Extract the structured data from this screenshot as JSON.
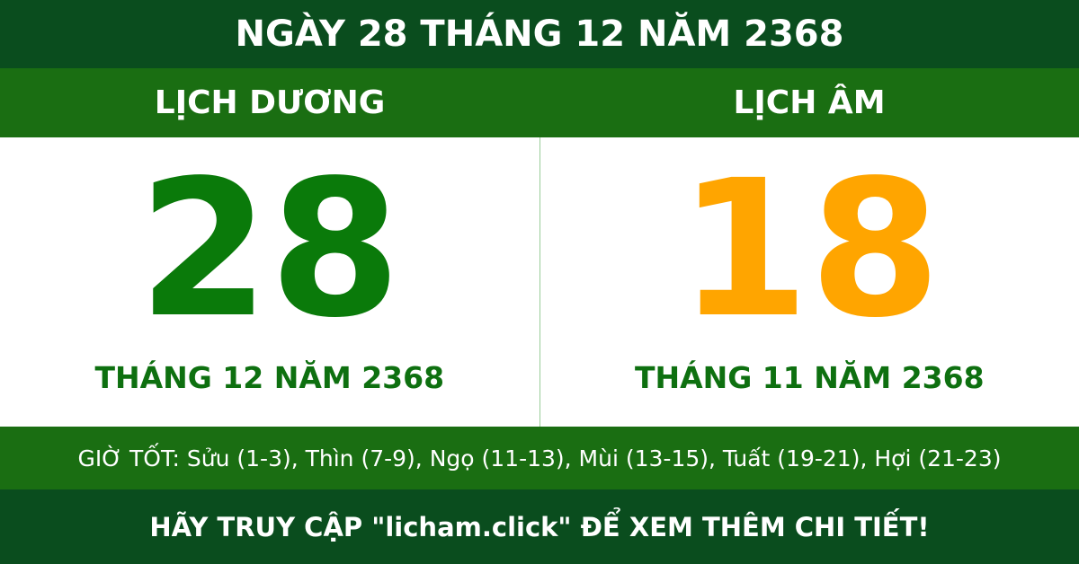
{
  "header": {
    "title": "NGÀY 28 THÁNG 12 NĂM 2368"
  },
  "solar": {
    "label": "LỊCH DƯƠNG",
    "day": "28",
    "month_year": "THÁNG 12 NĂM 2368"
  },
  "lunar": {
    "label": "LỊCH ÂM",
    "day": "18",
    "month_year": "THÁNG 11 NĂM 2368"
  },
  "good_hours": "GIỜ TỐT: Sửu (1-3), Thìn (7-9), Ngọ (11-13), Mùi (13-15), Tuất (19-21), Hợi (21-23)",
  "footer": {
    "text": "HÃY TRUY CẬP \"licham.click\" ĐỂ XEM THÊM CHI TIẾT!"
  }
}
